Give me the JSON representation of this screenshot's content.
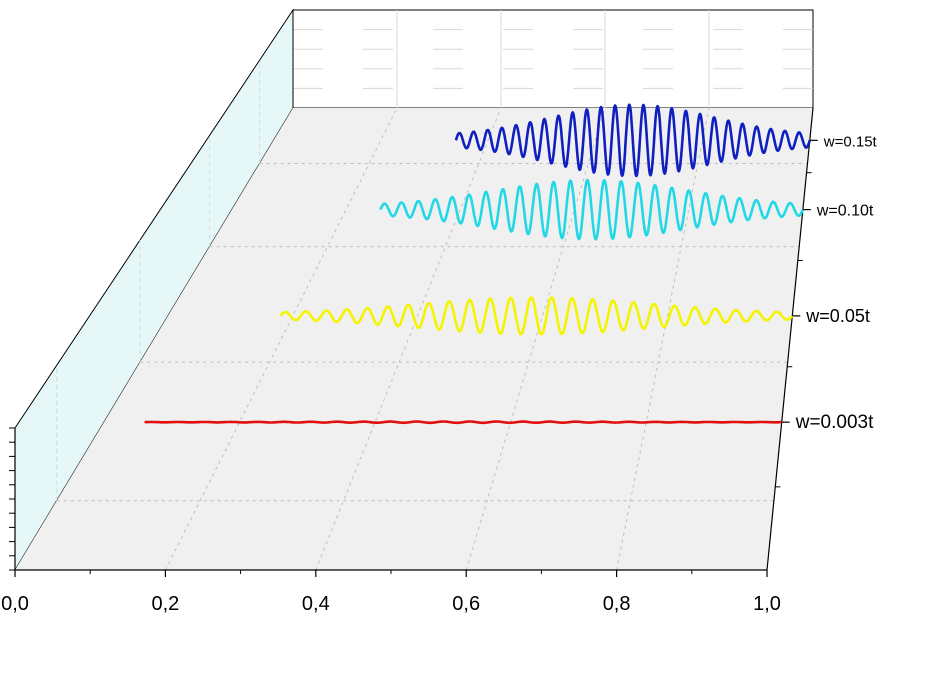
{
  "chart_data": {
    "type": "line",
    "projection": "3d-waterfall",
    "title": "",
    "xlabel": "",
    "ylabel": "",
    "xlim": [
      0.0,
      1.0
    ],
    "x_ticks": [
      "0,0",
      "0,2",
      "0,4",
      "0,6",
      "0,8",
      "1,0"
    ],
    "y_categories": [
      "w=0.003t",
      "w=0.05t",
      "w=0.10t",
      "w=0.15t"
    ],
    "grid": true,
    "series": [
      {
        "name": "w=0.003t",
        "color": "#e01010",
        "x_start": 0.06,
        "x_end": 1.0,
        "cycles": 24,
        "peak_amplitude": 0.02,
        "envelope_center": 0.5
      },
      {
        "name": "w=0.05t",
        "color": "#f4f400",
        "x_start": 0.18,
        "x_end": 1.0,
        "cycles": 25,
        "peak_amplitude": 0.55,
        "envelope_center": 0.5
      },
      {
        "name": "w=0.10t",
        "color": "#22d8e6",
        "x_start": 0.26,
        "x_end": 1.0,
        "cycles": 25,
        "peak_amplitude": 0.85,
        "envelope_center": 0.5
      },
      {
        "name": "w=0.15t",
        "color": "#1020c0",
        "x_start": 0.34,
        "x_end": 1.0,
        "cycles": 25,
        "peak_amplitude": 1.0,
        "envelope_center": 0.5
      }
    ]
  }
}
